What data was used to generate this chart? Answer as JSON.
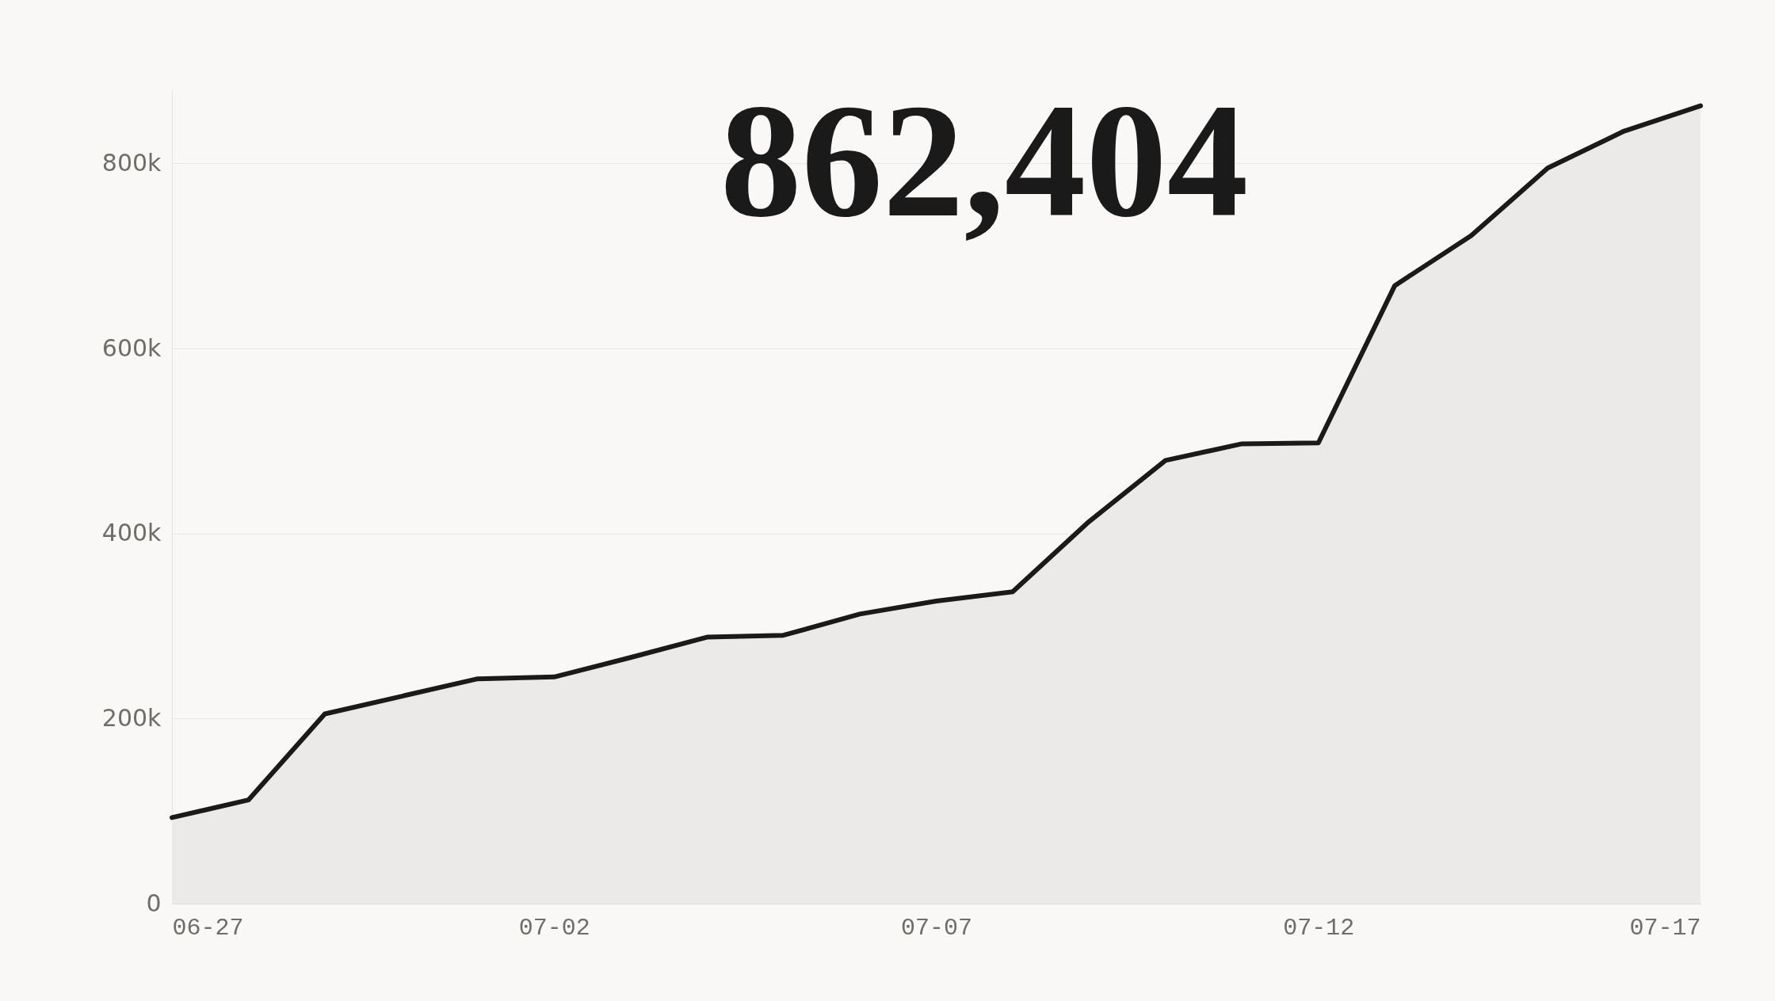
{
  "chart_data": {
    "type": "area",
    "title": "862,404",
    "x": [
      "--06-27",
      "--06-28",
      "--06-29",
      "--06-30",
      "--07-01",
      "--07-02",
      "--07-03",
      "--07-04",
      "--07-05",
      "--07-06",
      "--07-07",
      "--07-08",
      "--07-09",
      "--07-10",
      "--07-11",
      "--07-12",
      "--07-13",
      "--07-14",
      "--07-15",
      "--07-16",
      "--07-17"
    ],
    "series": [
      {
        "color": "#1a1a1a",
        "values": [
          93000,
          112000,
          205000,
          224000,
          243000,
          245000,
          266000,
          288000,
          290000,
          313000,
          327000,
          337000,
          413000,
          479000,
          497000,
          498000,
          668000,
          722000,
          795000,
          835000,
          862404
        ]
      }
    ],
    "xlim": [
      "--06-27",
      "--07-17"
    ],
    "xticks": [
      {
        "value": "--06-27",
        "label": "06-27"
      },
      {
        "value": "--07-02",
        "label": "07-02"
      },
      {
        "value": "--07-07",
        "label": "07-07"
      },
      {
        "value": "--07-12",
        "label": "07-12"
      },
      {
        "value": "--07-17",
        "label": "07-17"
      }
    ],
    "ylim": [
      0,
      880000
    ],
    "yticks": [
      0,
      {
        "value": 200000,
        "label": "200k"
      },
      {
        "value": 400000,
        "label": "400k"
      },
      {
        "value": 600000,
        "label": "600k"
      },
      {
        "value": 800000,
        "label": "800k"
      }
    ],
    "grid": "y"
  }
}
